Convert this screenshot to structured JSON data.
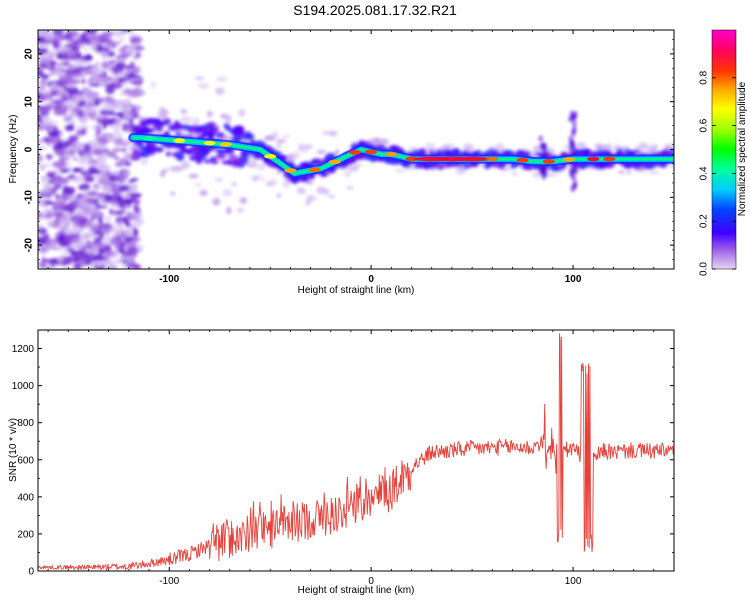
{
  "title": "S194.2025.081.17.32.R21",
  "chart_data": [
    {
      "type": "heatmap",
      "xlabel": "Height of straight line (km)",
      "ylabel": "Frequency (Hz)",
      "xlim": [
        -165,
        150
      ],
      "ylim": [
        -25,
        25
      ],
      "x_ticks": [
        -100,
        0,
        100
      ],
      "y_ticks": [
        -20,
        -10,
        0,
        10,
        20
      ],
      "colorbar": {
        "label": "Normalized spectral amplitude",
        "range": [
          0,
          1
        ],
        "ticks": [
          "0.0",
          "0.2",
          "0.4",
          "0.6",
          "0.8"
        ]
      },
      "ridge": {
        "description_points": [
          {
            "x": -115,
            "y": 2.5
          },
          {
            "x": -100,
            "y": 2
          },
          {
            "x": -85,
            "y": 1.5
          },
          {
            "x": -70,
            "y": 1
          },
          {
            "x": -55,
            "y": 0
          },
          {
            "x": -48,
            "y": -2
          },
          {
            "x": -38,
            "y": -5
          },
          {
            "x": -25,
            "y": -4
          },
          {
            "x": -15,
            "y": -2
          },
          {
            "x": -5,
            "y": 0
          },
          {
            "x": 5,
            "y": -1
          },
          {
            "x": 10,
            "y": -1
          },
          {
            "x": 20,
            "y": -2
          },
          {
            "x": 50,
            "y": -2
          },
          {
            "x": 70,
            "y": -2
          },
          {
            "x": 80,
            "y": -2.5
          },
          {
            "x": 90,
            "y": -2.5
          },
          {
            "x": 100,
            "y": -2
          },
          {
            "x": 120,
            "y": -2
          },
          {
            "x": 150,
            "y": -2
          }
        ]
      }
    },
    {
      "type": "line",
      "xlabel": "Height of straight line (km)",
      "ylabel": "SNR (10 * v/v)",
      "xlim": [
        -165,
        150
      ],
      "ylim": [
        0,
        1300
      ],
      "x_ticks": [
        -100,
        0,
        100
      ],
      "y_ticks": [
        0,
        200,
        400,
        600,
        800,
        1000,
        1200
      ],
      "series": [
        {
          "color": "#e8413a",
          "x": [
            -165,
            -140,
            -120,
            -110,
            -100,
            -90,
            -80,
            -70,
            -60,
            -50,
            -40,
            -30,
            -20,
            -10,
            0,
            10,
            20,
            30,
            40,
            50,
            60,
            70,
            80,
            85,
            90,
            93,
            95,
            100,
            105,
            108,
            110,
            115,
            120,
            130,
            140,
            150
          ],
          "y": [
            20,
            20,
            25,
            40,
            60,
            90,
            140,
            180,
            200,
            230,
            250,
            280,
            300,
            350,
            390,
            440,
            560,
            640,
            650,
            660,
            665,
            670,
            665,
            700,
            600,
            700,
            650,
            660,
            620,
            650,
            600,
            650,
            640,
            650,
            645,
            650
          ]
        }
      ]
    }
  ]
}
